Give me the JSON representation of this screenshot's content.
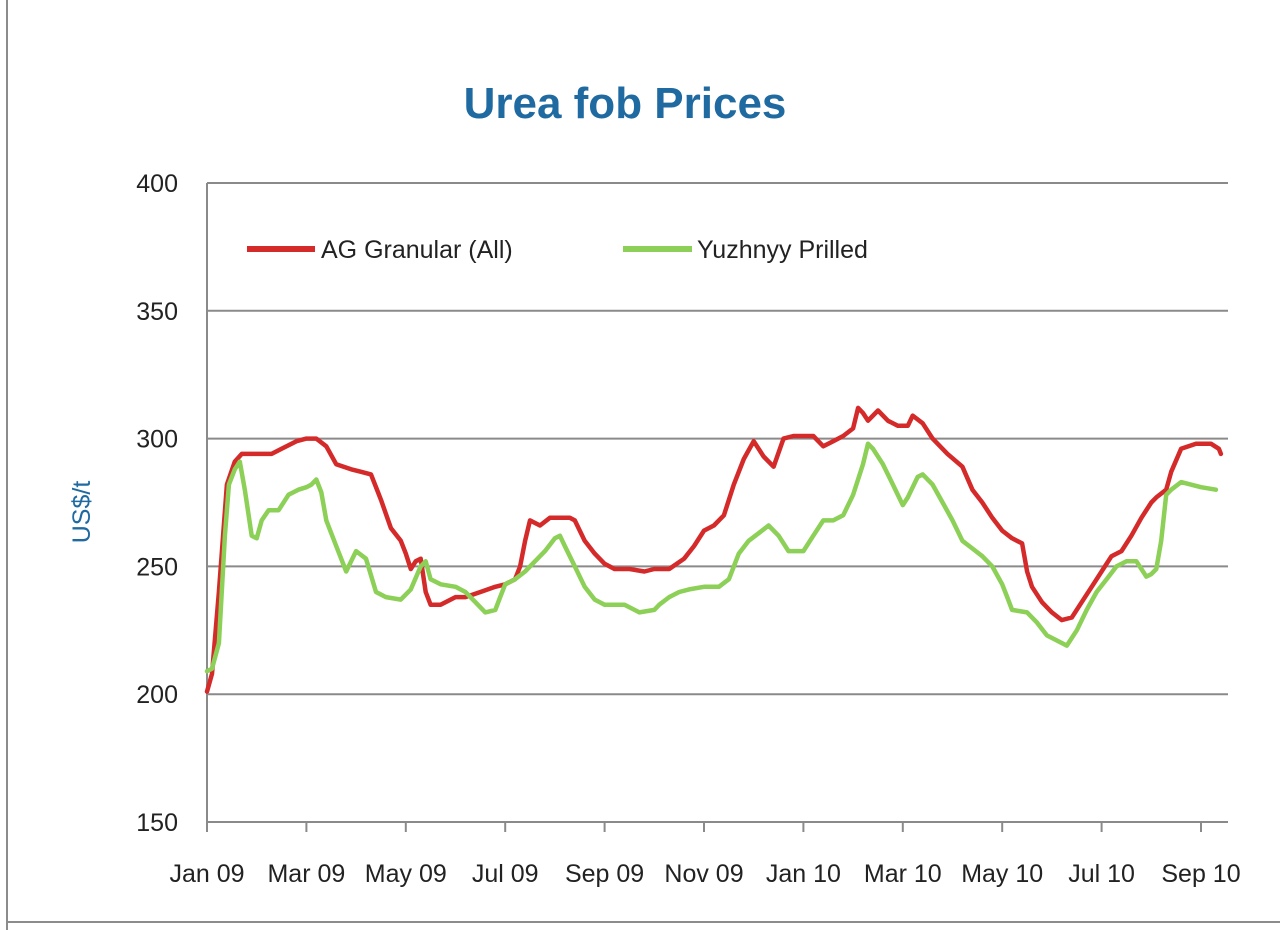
{
  "chart_data": {
    "type": "line",
    "title": "Urea fob Prices",
    "xlabel": "",
    "ylabel": "US$/t",
    "ylim": [
      150,
      400
    ],
    "yticks": [
      150,
      200,
      250,
      300,
      350,
      400
    ],
    "grid": "horizontal",
    "legend_position": "top-left",
    "categories": [
      "Jan 09",
      "Mar 09",
      "May 09",
      "Jul 09",
      "Sep 09",
      "Nov 09",
      "Jan 10",
      "Mar 10",
      "May 10",
      "Jul 10",
      "Sep 10"
    ],
    "series": [
      {
        "name": "AG Granular (All)",
        "color": "#d42a2a",
        "points": [
          [
            0.0,
            201
          ],
          [
            0.05,
            208
          ],
          [
            0.12,
            240
          ],
          [
            0.2,
            282
          ],
          [
            0.28,
            291
          ],
          [
            0.35,
            294
          ],
          [
            0.5,
            294
          ],
          [
            0.65,
            294
          ],
          [
            0.75,
            296
          ],
          [
            0.9,
            299
          ],
          [
            1.0,
            300
          ],
          [
            1.1,
            300
          ],
          [
            1.2,
            297
          ],
          [
            1.3,
            290
          ],
          [
            1.45,
            288
          ],
          [
            1.55,
            287
          ],
          [
            1.65,
            286
          ],
          [
            1.75,
            276
          ],
          [
            1.85,
            265
          ],
          [
            1.95,
            260
          ],
          [
            2.0,
            255
          ],
          [
            2.05,
            249
          ],
          [
            2.1,
            252
          ],
          [
            2.15,
            253
          ],
          [
            2.2,
            240
          ],
          [
            2.25,
            235
          ],
          [
            2.35,
            235
          ],
          [
            2.5,
            238
          ],
          [
            2.6,
            238
          ],
          [
            2.75,
            240
          ],
          [
            2.9,
            242
          ],
          [
            3.0,
            243
          ],
          [
            3.1,
            245
          ],
          [
            3.15,
            250
          ],
          [
            3.2,
            260
          ],
          [
            3.25,
            268
          ],
          [
            3.35,
            266
          ],
          [
            3.45,
            269
          ],
          [
            3.55,
            269
          ],
          [
            3.65,
            269
          ],
          [
            3.7,
            268
          ],
          [
            3.8,
            260
          ],
          [
            3.9,
            255
          ],
          [
            4.0,
            251
          ],
          [
            4.1,
            249
          ],
          [
            4.25,
            249
          ],
          [
            4.4,
            248
          ],
          [
            4.5,
            249
          ],
          [
            4.65,
            249
          ],
          [
            4.8,
            253
          ],
          [
            4.9,
            258
          ],
          [
            5.0,
            264
          ],
          [
            5.1,
            266
          ],
          [
            5.2,
            270
          ],
          [
            5.3,
            282
          ],
          [
            5.4,
            292
          ],
          [
            5.5,
            299
          ],
          [
            5.6,
            293
          ],
          [
            5.7,
            289
          ],
          [
            5.8,
            300
          ],
          [
            5.9,
            301
          ],
          [
            6.1,
            301
          ],
          [
            6.2,
            297
          ],
          [
            6.3,
            299
          ],
          [
            6.4,
            301
          ],
          [
            6.5,
            304
          ],
          [
            6.55,
            312
          ],
          [
            6.6,
            310
          ],
          [
            6.65,
            307
          ],
          [
            6.75,
            311
          ],
          [
            6.85,
            307
          ],
          [
            6.95,
            305
          ],
          [
            7.05,
            305
          ],
          [
            7.1,
            309
          ],
          [
            7.2,
            306
          ],
          [
            7.3,
            300
          ],
          [
            7.45,
            294
          ],
          [
            7.6,
            289
          ],
          [
            7.7,
            280
          ],
          [
            7.8,
            275
          ],
          [
            7.9,
            269
          ],
          [
            8.0,
            264
          ],
          [
            8.1,
            261
          ],
          [
            8.2,
            259
          ],
          [
            8.25,
            248
          ],
          [
            8.3,
            242
          ],
          [
            8.4,
            236
          ],
          [
            8.5,
            232
          ],
          [
            8.6,
            229
          ],
          [
            8.7,
            230
          ],
          [
            8.8,
            236
          ],
          [
            8.9,
            242
          ],
          [
            9.0,
            248
          ],
          [
            9.1,
            254
          ],
          [
            9.2,
            256
          ],
          [
            9.3,
            262
          ],
          [
            9.4,
            269
          ],
          [
            9.5,
            275
          ],
          [
            9.55,
            277
          ],
          [
            9.65,
            280
          ],
          [
            9.7,
            287
          ],
          [
            9.8,
            296
          ],
          [
            9.95,
            298
          ],
          [
            10.1,
            298
          ],
          [
            10.18,
            296
          ],
          [
            10.2,
            294
          ]
        ]
      },
      {
        "name": "Yuzhnyy Prilled",
        "color": "#8cd057",
        "points": [
          [
            0.0,
            209
          ],
          [
            0.05,
            210
          ],
          [
            0.12,
            220
          ],
          [
            0.18,
            262
          ],
          [
            0.22,
            282
          ],
          [
            0.28,
            288
          ],
          [
            0.33,
            291
          ],
          [
            0.38,
            280
          ],
          [
            0.45,
            262
          ],
          [
            0.5,
            261
          ],
          [
            0.55,
            268
          ],
          [
            0.62,
            272
          ],
          [
            0.72,
            272
          ],
          [
            0.82,
            278
          ],
          [
            0.92,
            280
          ],
          [
            1.0,
            281
          ],
          [
            1.05,
            282
          ],
          [
            1.1,
            284
          ],
          [
            1.15,
            279
          ],
          [
            1.2,
            268
          ],
          [
            1.3,
            258
          ],
          [
            1.4,
            248
          ],
          [
            1.45,
            252
          ],
          [
            1.5,
            256
          ],
          [
            1.6,
            253
          ],
          [
            1.7,
            240
          ],
          [
            1.8,
            238
          ],
          [
            1.95,
            237
          ],
          [
            2.05,
            241
          ],
          [
            2.15,
            250
          ],
          [
            2.2,
            252
          ],
          [
            2.25,
            245
          ],
          [
            2.35,
            243
          ],
          [
            2.5,
            242
          ],
          [
            2.6,
            240
          ],
          [
            2.7,
            236
          ],
          [
            2.8,
            232
          ],
          [
            2.9,
            233
          ],
          [
            2.95,
            238
          ],
          [
            3.0,
            243
          ],
          [
            3.1,
            245
          ],
          [
            3.2,
            248
          ],
          [
            3.3,
            252
          ],
          [
            3.4,
            256
          ],
          [
            3.5,
            261
          ],
          [
            3.55,
            262
          ],
          [
            3.6,
            258
          ],
          [
            3.7,
            250
          ],
          [
            3.8,
            242
          ],
          [
            3.9,
            237
          ],
          [
            4.0,
            235
          ],
          [
            4.2,
            235
          ],
          [
            4.35,
            232
          ],
          [
            4.5,
            233
          ],
          [
            4.55,
            235
          ],
          [
            4.65,
            238
          ],
          [
            4.75,
            240
          ],
          [
            4.85,
            241
          ],
          [
            5.0,
            242
          ],
          [
            5.15,
            242
          ],
          [
            5.25,
            245
          ],
          [
            5.35,
            255
          ],
          [
            5.45,
            260
          ],
          [
            5.55,
            263
          ],
          [
            5.65,
            266
          ],
          [
            5.75,
            262
          ],
          [
            5.85,
            256
          ],
          [
            6.0,
            256
          ],
          [
            6.1,
            262
          ],
          [
            6.2,
            268
          ],
          [
            6.3,
            268
          ],
          [
            6.4,
            270
          ],
          [
            6.5,
            278
          ],
          [
            6.6,
            290
          ],
          [
            6.65,
            298
          ],
          [
            6.7,
            296
          ],
          [
            6.8,
            290
          ],
          [
            6.9,
            282
          ],
          [
            7.0,
            274
          ],
          [
            7.05,
            277
          ],
          [
            7.1,
            281
          ],
          [
            7.15,
            285
          ],
          [
            7.2,
            286
          ],
          [
            7.3,
            282
          ],
          [
            7.4,
            275
          ],
          [
            7.5,
            268
          ],
          [
            7.6,
            260
          ],
          [
            7.7,
            257
          ],
          [
            7.8,
            254
          ],
          [
            7.9,
            250
          ],
          [
            8.0,
            243
          ],
          [
            8.05,
            238
          ],
          [
            8.1,
            233
          ],
          [
            8.25,
            232
          ],
          [
            8.35,
            228
          ],
          [
            8.45,
            223
          ],
          [
            8.55,
            221
          ],
          [
            8.65,
            219
          ],
          [
            8.75,
            225
          ],
          [
            8.85,
            233
          ],
          [
            8.95,
            240
          ],
          [
            9.05,
            245
          ],
          [
            9.15,
            250
          ],
          [
            9.25,
            252
          ],
          [
            9.35,
            252
          ],
          [
            9.4,
            249
          ],
          [
            9.45,
            246
          ],
          [
            9.5,
            247
          ],
          [
            9.55,
            249
          ],
          [
            9.6,
            260
          ],
          [
            9.65,
            278
          ],
          [
            9.7,
            280
          ],
          [
            9.8,
            283
          ],
          [
            10.0,
            281
          ],
          [
            10.15,
            280
          ]
        ]
      }
    ]
  }
}
